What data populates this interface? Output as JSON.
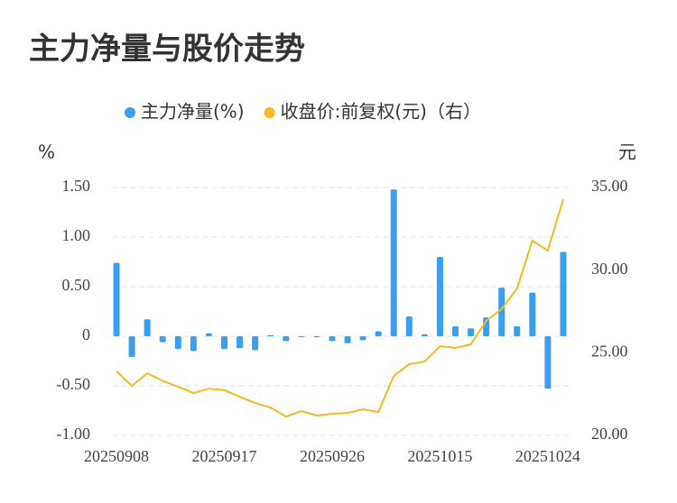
{
  "chart_data": {
    "type": "bar-line",
    "title": "主力净量与股价走势",
    "y_label": "%",
    "y2_label": "元",
    "categories": [
      "20250908",
      null,
      null,
      null,
      null,
      null,
      null,
      "20250917",
      null,
      null,
      null,
      null,
      null,
      null,
      "20250926",
      null,
      null,
      null,
      null,
      null,
      null,
      "20251015",
      null,
      null,
      null,
      null,
      null,
      null,
      "20251024",
      null
    ],
    "series": [
      {
        "name": "主力净量(%)",
        "type": "bar",
        "color": "#3a9ff0",
        "values": [
          0.74,
          -0.21,
          0.17,
          -0.06,
          -0.13,
          -0.15,
          0.03,
          -0.13,
          -0.12,
          -0.14,
          0.01,
          -0.05,
          0.0,
          -0.01,
          -0.05,
          -0.07,
          -0.04,
          0.05,
          1.48,
          0.2,
          0.02,
          0.8,
          0.1,
          0.08,
          0.19,
          0.49,
          0.1,
          0.44,
          -0.53,
          0.85
        ]
      },
      {
        "name": "收盘价:前复权(元)（右）",
        "type": "line",
        "axis": "y2",
        "color": "#f5b921",
        "values": [
          23.87,
          23.0,
          23.76,
          23.3,
          22.94,
          22.56,
          22.83,
          22.73,
          22.34,
          21.96,
          21.69,
          21.14,
          21.47,
          21.2,
          21.31,
          21.36,
          21.58,
          21.42,
          23.6,
          24.31,
          24.47,
          25.4,
          25.29,
          25.51,
          26.93,
          27.64,
          28.89,
          31.78,
          31.18,
          34.29
        ]
      }
    ],
    "ylim": [
      -1,
      1.5
    ],
    "yticks": [
      {
        "value": -1,
        "label": "-1.00"
      },
      {
        "value": -0.5,
        "label": "-0.50"
      },
      0,
      {
        "value": 0.5,
        "label": "0.50"
      },
      {
        "value": 1,
        "label": "1.00"
      },
      {
        "value": 1.5,
        "label": "1.50"
      }
    ],
    "y2lim": [
      20,
      35
    ],
    "y2ticks": [
      {
        "value": 20,
        "label": "20.00"
      },
      {
        "value": 25,
        "label": "25.00"
      },
      {
        "value": 30,
        "label": "30.00"
      },
      {
        "value": 35,
        "label": "35.00"
      }
    ],
    "grid": true,
    "legend": "top"
  }
}
